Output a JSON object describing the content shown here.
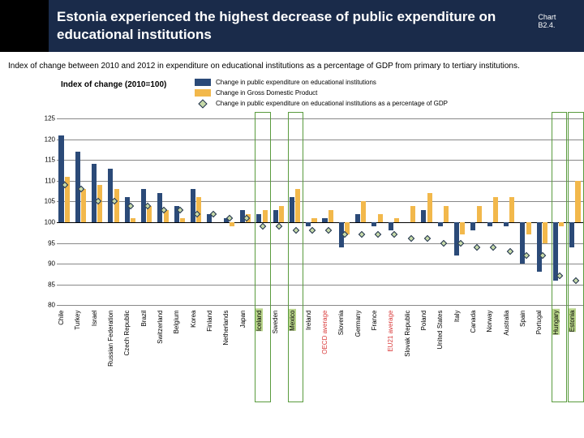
{
  "header": {
    "title": "Estonia experienced the highest decrease of public expenditure on educational institutions",
    "chart_ref": "Chart B2.4."
  },
  "subtitle": "Index of change between 2010 and 2012 in expenditure on educational institutions as a percentage of GDP  from primary to tertiary institutions.",
  "legend": {
    "index_label": "Index of change (2010=100)",
    "series1": "Change in public expenditure on educational institutions",
    "series2": "Change in Gross Domestic Product",
    "series3": "Change in public expenditure on educational institutions as a percentage of GDP"
  },
  "chart": {
    "type": "bar",
    "ylim": [
      80,
      125
    ],
    "ytick_step": 5,
    "yticks": [
      80,
      85,
      90,
      95,
      100,
      105,
      110,
      115,
      120,
      125
    ],
    "baseline": 100,
    "grid_color": "#888888",
    "background": "#ffffff",
    "bar1_color": "#2b4a78",
    "bar2_color": "#f2b84b",
    "marker_fill": "#c6d9a8",
    "marker_border": "#1a2b4a",
    "highlight_color": "#5a9b3e",
    "xlabel_highlight_color": "#b8d48a",
    "avg_label_color": "#d93a3a",
    "label_fontsize": 8,
    "countries": [
      {
        "name": "Chile",
        "expend": 121,
        "gdp": 111,
        "pct": 109
      },
      {
        "name": "Turkey",
        "expend": 117,
        "gdp": 108,
        "pct": 108
      },
      {
        "name": "Israel",
        "expend": 114,
        "gdp": 109,
        "pct": 105
      },
      {
        "name": "Russian Federation",
        "expend": 113,
        "gdp": 108,
        "pct": 105
      },
      {
        "name": "Czech Republic",
        "expend": 106,
        "gdp": 101,
        "pct": 104
      },
      {
        "name": "Brazil",
        "expend": 108,
        "gdp": 104,
        "pct": 104
      },
      {
        "name": "Switzerland",
        "expend": 107,
        "gdp": 103,
        "pct": 103
      },
      {
        "name": "Belgium",
        "expend": 104,
        "gdp": 101,
        "pct": 103
      },
      {
        "name": "Korea",
        "expend": 108,
        "gdp": 106,
        "pct": 102
      },
      {
        "name": "Finland",
        "expend": 102,
        "gdp": 100,
        "pct": 102
      },
      {
        "name": "Netherlands",
        "expend": 101,
        "gdp": 99,
        "pct": 101
      },
      {
        "name": "Japan",
        "expend": 103,
        "gdp": 102,
        "pct": 101
      },
      {
        "name": "Iceland",
        "expend": 102,
        "gdp": 103,
        "pct": 99,
        "highlight": true
      },
      {
        "name": "Sweden",
        "expend": 103,
        "gdp": 104,
        "pct": 99
      },
      {
        "name": "Mexico",
        "expend": 106,
        "gdp": 108,
        "pct": 98,
        "highlight": true
      },
      {
        "name": "Ireland",
        "expend": 99,
        "gdp": 101,
        "pct": 98
      },
      {
        "name": "OECD average",
        "expend": 101,
        "gdp": 103,
        "pct": 98,
        "avg": true
      },
      {
        "name": "Slovenia",
        "expend": 94,
        "gdp": 97,
        "pct": 97
      },
      {
        "name": "Germany",
        "expend": 102,
        "gdp": 105,
        "pct": 97
      },
      {
        "name": "France",
        "expend": 99,
        "gdp": 102,
        "pct": 97
      },
      {
        "name": "EU21 average",
        "expend": 98,
        "gdp": 101,
        "pct": 97,
        "avg": true
      },
      {
        "name": "Slovak Republic",
        "expend": 100,
        "gdp": 104,
        "pct": 96
      },
      {
        "name": "Poland",
        "expend": 103,
        "gdp": 107,
        "pct": 96
      },
      {
        "name": "United States",
        "expend": 99,
        "gdp": 104,
        "pct": 95
      },
      {
        "name": "Italy",
        "expend": 92,
        "gdp": 97,
        "pct": 95
      },
      {
        "name": "Canada",
        "expend": 98,
        "gdp": 104,
        "pct": 94
      },
      {
        "name": "Norway",
        "expend": 99,
        "gdp": 106,
        "pct": 94
      },
      {
        "name": "Australia",
        "expend": 99,
        "gdp": 106,
        "pct": 93
      },
      {
        "name": "Spain",
        "expend": 90,
        "gdp": 97,
        "pct": 92
      },
      {
        "name": "Portugal",
        "expend": 88,
        "gdp": 95,
        "pct": 92
      },
      {
        "name": "Hungary",
        "expend": 86,
        "gdp": 99,
        "pct": 87,
        "highlight": true
      },
      {
        "name": "Estonia",
        "expend": 94,
        "gdp": 110,
        "pct": 86,
        "highlight": true
      }
    ]
  }
}
